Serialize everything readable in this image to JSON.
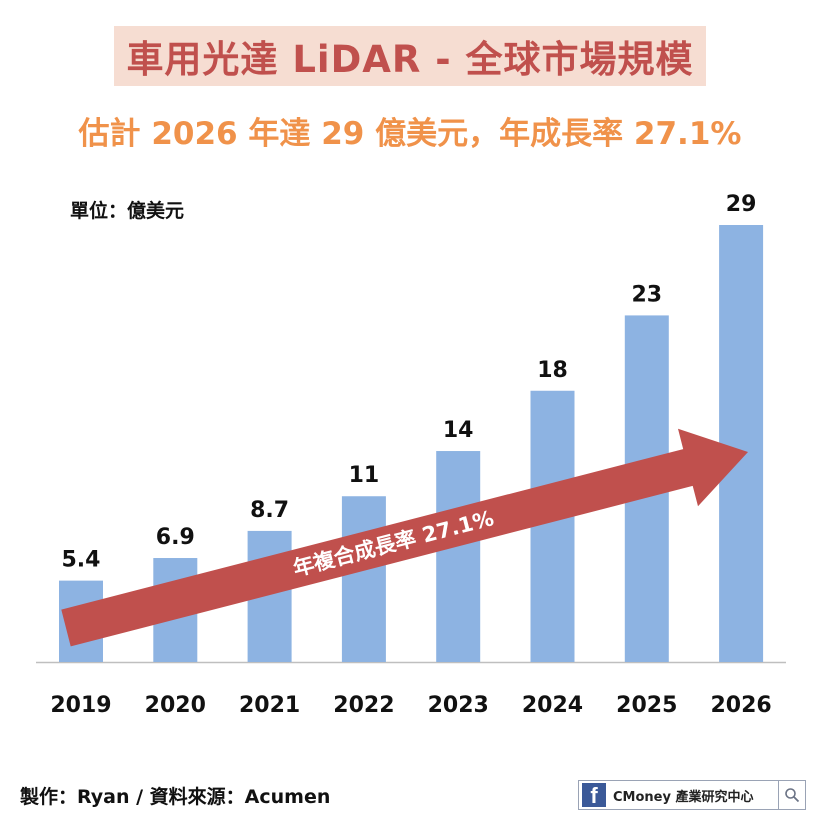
{
  "header": {
    "title": "車用光達 LiDAR - 全球市場規模",
    "subtitle": "估計 2026 年達 29 億美元，年成長率 27.1%"
  },
  "chart_data": {
    "type": "bar",
    "unit_label": "單位：億美元",
    "categories": [
      "2019",
      "2020",
      "2021",
      "2022",
      "2023",
      "2024",
      "2025",
      "2026"
    ],
    "values": [
      5.4,
      6.9,
      8.7,
      11,
      14,
      18,
      23,
      29
    ],
    "value_labels": [
      "5.4",
      "6.9",
      "8.7",
      "11",
      "14",
      "18",
      "23",
      "29"
    ],
    "ylim": [
      0,
      29
    ],
    "bar_color": "#8db3e2",
    "annotation": {
      "text": "年複合成長率 27.1%",
      "color": "#c0504d"
    }
  },
  "footer": {
    "credit": "製作：Ryan / 資料來源：Acumen",
    "brand_letter": "f",
    "brand_text": "CMoney 產業研究中心"
  }
}
